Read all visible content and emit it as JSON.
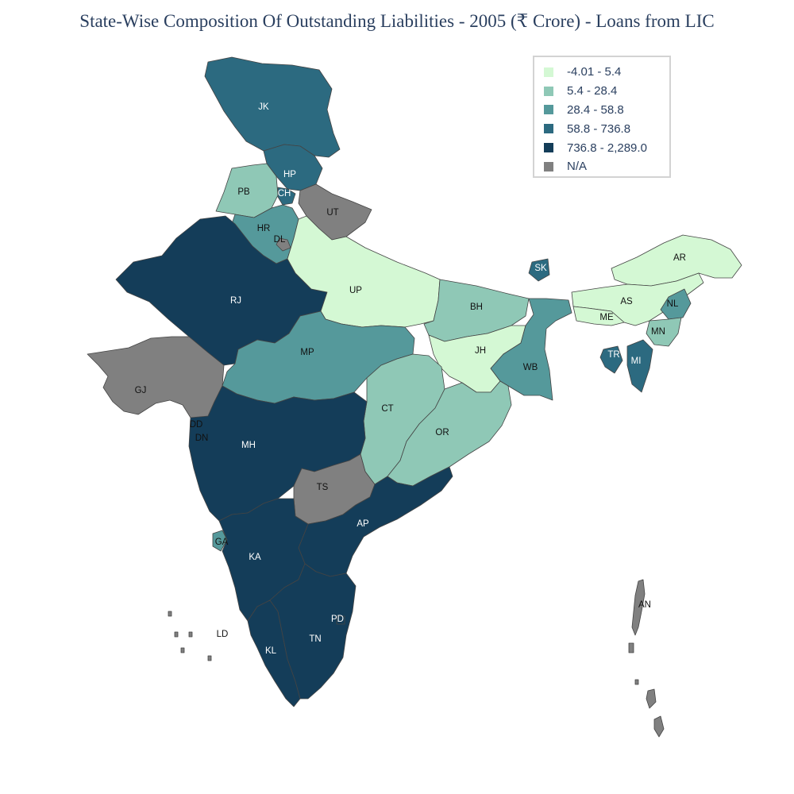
{
  "title": "State-Wise Composition Of Outstanding Liabilities - 2005 (₹ Crore) - Loans from LIC",
  "legend": [
    {
      "label": "-4.01 - 5.4",
      "color": "#d4f8d4"
    },
    {
      "label": "5.4 - 28.4",
      "color": "#8fc8b6"
    },
    {
      "label": "28.4 - 58.8",
      "color": "#55999b"
    },
    {
      "label": "58.8 - 736.8",
      "color": "#2c6a80"
    },
    {
      "label": "736.8 - 2,289.0",
      "color": "#143d59"
    },
    {
      "label": "N/A",
      "color": "#808080"
    }
  ],
  "chart_data": {
    "type": "choropleth",
    "title": "State-Wise Composition Of Outstanding Liabilities - 2005 (₹ Crore) - Loans from LIC",
    "regions": [
      {
        "code": "JK",
        "bin": "58.8 - 736.8"
      },
      {
        "code": "HP",
        "bin": "58.8 - 736.8"
      },
      {
        "code": "PB",
        "bin": "5.4 - 28.4"
      },
      {
        "code": "CH",
        "bin": "58.8 - 736.8"
      },
      {
        "code": "UT",
        "bin": "N/A"
      },
      {
        "code": "HR",
        "bin": "28.4 - 58.8"
      },
      {
        "code": "DL",
        "bin": "N/A"
      },
      {
        "code": "RJ",
        "bin": "736.8 - 2,289.0"
      },
      {
        "code": "UP",
        "bin": "-4.01 - 5.4"
      },
      {
        "code": "BH",
        "bin": "5.4 - 28.4"
      },
      {
        "code": "SK",
        "bin": "58.8 - 736.8"
      },
      {
        "code": "AR",
        "bin": "-4.01 - 5.4"
      },
      {
        "code": "AS",
        "bin": "-4.01 - 5.4"
      },
      {
        "code": "ME",
        "bin": "-4.01 - 5.4"
      },
      {
        "code": "NL",
        "bin": "28.4 - 58.8"
      },
      {
        "code": "MN",
        "bin": "5.4 - 28.4"
      },
      {
        "code": "TR",
        "bin": "58.8 - 736.8"
      },
      {
        "code": "MI",
        "bin": "58.8 - 736.8"
      },
      {
        "code": "JH",
        "bin": "-4.01 - 5.4"
      },
      {
        "code": "WB",
        "bin": "28.4 - 58.8"
      },
      {
        "code": "MP",
        "bin": "28.4 - 58.8"
      },
      {
        "code": "GJ",
        "bin": "N/A"
      },
      {
        "code": "DD",
        "bin": "N/A"
      },
      {
        "code": "DN",
        "bin": "N/A"
      },
      {
        "code": "CT",
        "bin": "5.4 - 28.4"
      },
      {
        "code": "OR",
        "bin": "5.4 - 28.4"
      },
      {
        "code": "MH",
        "bin": "736.8 - 2,289.0"
      },
      {
        "code": "TS",
        "bin": "N/A"
      },
      {
        "code": "AP",
        "bin": "736.8 - 2,289.0"
      },
      {
        "code": "GA",
        "bin": "28.4 - 58.8"
      },
      {
        "code": "KA",
        "bin": "736.8 - 2,289.0"
      },
      {
        "code": "KL",
        "bin": "736.8 - 2,289.0"
      },
      {
        "code": "TN",
        "bin": "736.8 - 2,289.0"
      },
      {
        "code": "PD",
        "bin": "736.8 - 2,289.0"
      },
      {
        "code": "LD",
        "bin": "N/A"
      },
      {
        "code": "AN",
        "bin": "N/A"
      }
    ]
  }
}
